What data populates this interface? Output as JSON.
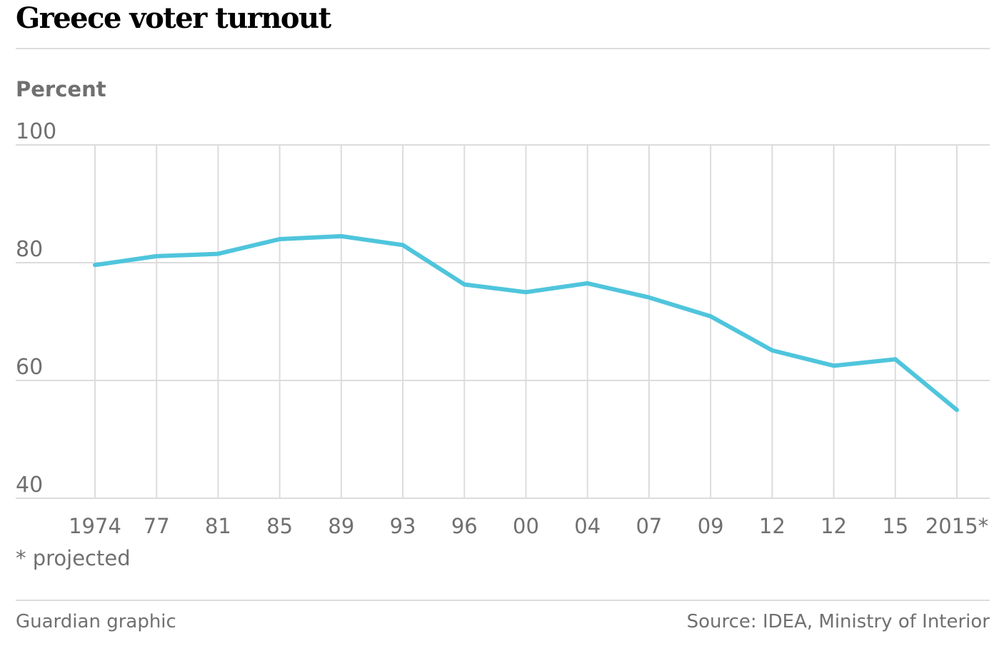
{
  "header": {
    "title": "Greece voter turnout"
  },
  "footer": {
    "credit": "Guardian graphic",
    "source": "Source: IDEA, Ministry of Interior"
  },
  "colors": {
    "line": "#4fc5dc",
    "grid": "#dcdcdc",
    "muted_text": "#707070"
  },
  "chart_data": {
    "type": "line",
    "title": "Greece voter turnout",
    "ylabel": "Percent",
    "xlabel": "",
    "ylim": [
      40,
      100
    ],
    "yticks": [
      100,
      80,
      60,
      40
    ],
    "grid": true,
    "footnote": "* projected",
    "categories": [
      "1974",
      "77",
      "81",
      "85",
      "89",
      "93",
      "96",
      "00",
      "04",
      "07",
      "09",
      "12",
      "12",
      "15",
      "2015*"
    ],
    "series": [
      {
        "values": [
          79.6,
          81.1,
          81.5,
          84.0,
          84.5,
          83.0,
          76.3,
          75.0,
          76.5,
          74.1,
          70.9,
          65.1,
          62.5,
          63.6,
          55.0
        ]
      }
    ]
  }
}
